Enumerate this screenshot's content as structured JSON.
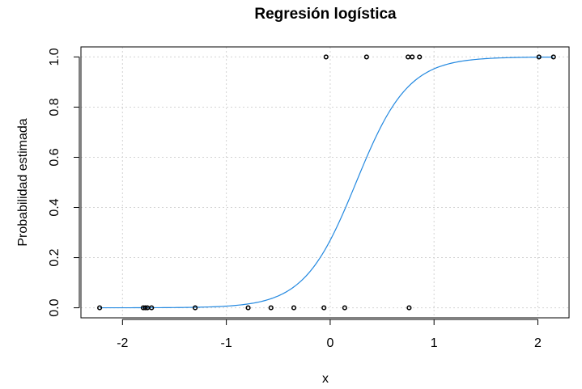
{
  "chart_data": {
    "type": "scatter",
    "title": "Regresión logística",
    "xlabel": "x",
    "ylabel": "Probabilidad estimada",
    "xlim": [
      -2.4,
      2.3
    ],
    "ylim": [
      -0.04,
      1.04
    ],
    "xticks": [
      -2,
      -1,
      0,
      1,
      2
    ],
    "xtick_labels": [
      "-2",
      "-1",
      "0",
      "1",
      "2"
    ],
    "yticks": [
      0.0,
      0.2,
      0.4,
      0.6,
      0.8,
      1.0
    ],
    "ytick_labels": [
      "0.0",
      "0.2",
      "0.4",
      "0.6",
      "0.8",
      "1.0"
    ],
    "grid": true,
    "colors": {
      "curve": "#2288e0",
      "points": "#000000",
      "grid": "#d3d3d3"
    },
    "series": [
      {
        "type": "scatter",
        "x": [
          -2.22,
          -1.8,
          -1.78,
          -1.76,
          -1.72,
          -1.3,
          -0.79,
          -0.57,
          -0.35,
          -0.06,
          0.14,
          0.76,
          -0.04,
          0.35,
          0.75,
          0.79,
          0.86,
          2.01,
          2.15
        ],
        "y": [
          0,
          0,
          0,
          0,
          0,
          0,
          0,
          0,
          0,
          0,
          0,
          0,
          1,
          1,
          1,
          1,
          1,
          1,
          1
        ]
      },
      {
        "type": "line",
        "logistic": {
          "intercept": -1.0,
          "slope": 4.0
        },
        "x_range": [
          -2.22,
          2.15
        ]
      }
    ]
  }
}
